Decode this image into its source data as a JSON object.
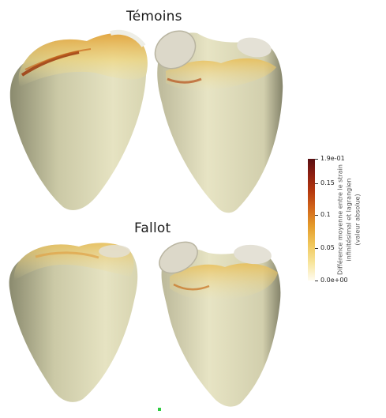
{
  "titles": {
    "top": "Témoins",
    "bottom": "Fallot"
  },
  "colorbar": {
    "max_label": "1.9e-01",
    "ticks": [
      "0.15",
      "0.1",
      "0.05"
    ],
    "min_label": "0.0e+00",
    "title_lines": [
      "Différence moyenne entre le strain",
      "infinitésimal et lagrangien",
      "(valeur absolue)"
    ],
    "colors": [
      "#5a0f12",
      "#b3360e",
      "#e49b2a",
      "#f7e49a",
      "#fffbf0"
    ]
  }
}
